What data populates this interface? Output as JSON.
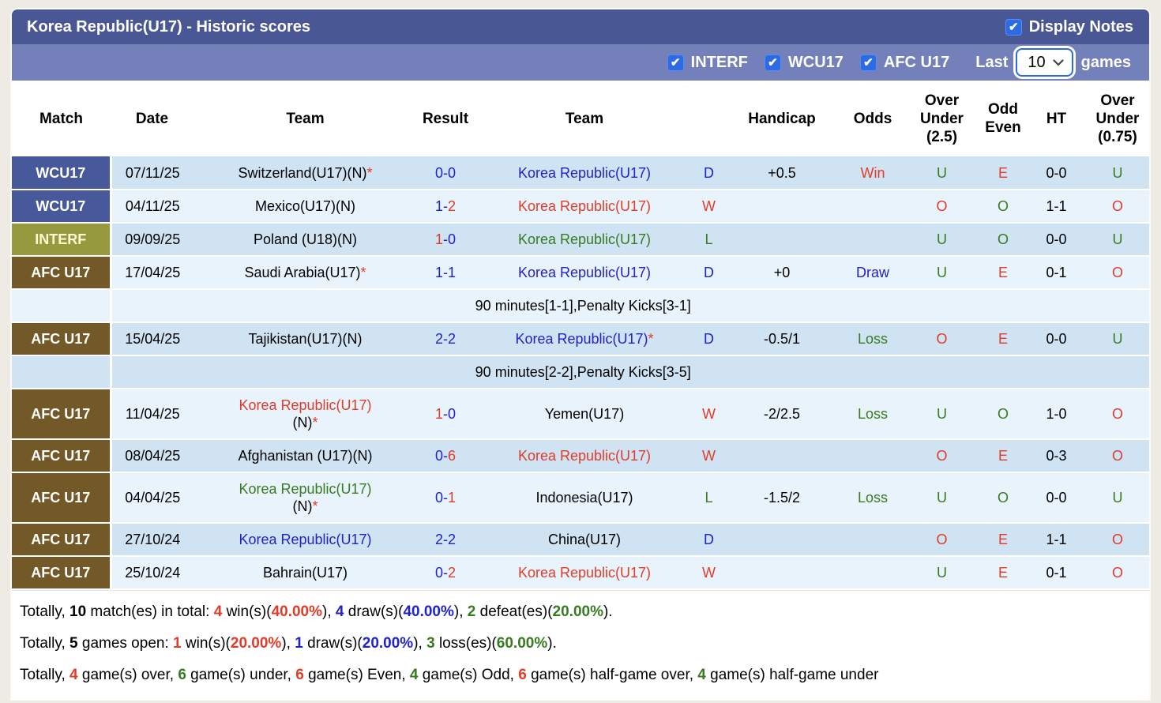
{
  "title_bar": {
    "title": "Korea Republic(U17) - Historic scores",
    "display_notes_label": "Display Notes",
    "display_notes_checked": true
  },
  "filter_bar": {
    "filters": [
      {
        "label": "INTERF",
        "checked": true
      },
      {
        "label": "WCU17",
        "checked": true
      },
      {
        "label": "AFC U17",
        "checked": true
      }
    ],
    "last_label": "Last",
    "games_label": "games",
    "selected_count": "10"
  },
  "colors": {
    "text": {
      "red": "#e23b28",
      "blue": "#2122cc",
      "green": "#377b21",
      "black": "#000000"
    },
    "badges": {
      "wcu17": "#47589b",
      "interf": "#97993f",
      "afcu17": "#735927"
    },
    "row_dark": "#cfe3f3",
    "row_light": "#e9f3fb",
    "title_bar": "#4a5795",
    "filter_bar": "#7480b9",
    "checkbox": "#2d6be4"
  },
  "table": {
    "headers": {
      "match": "Match",
      "date": "Date",
      "team1": "Team",
      "result": "Result",
      "team2": "Team",
      "wdl": "",
      "handicap": "Handicap",
      "odds": "Odds",
      "ou25": "Over\nUnder\n(2.5)",
      "oddeven": "Odd\nEven",
      "ht": "HT",
      "ou075": "Over\nUnder\n(0.75)"
    },
    "rows": [
      {
        "type": "match",
        "league": "WCU17",
        "lkey": "wcu17",
        "shade": "dark",
        "date": "07/11/25",
        "t1": {
          "name": "Switzerland(U17)(N)",
          "color": "black",
          "star": true
        },
        "res": {
          "a": "0",
          "ac": "blue",
          "b": "0",
          "bc": "blue"
        },
        "t2": {
          "name": "Korea Republic(U17)",
          "color": "blue"
        },
        "wdl": {
          "t": "D",
          "c": "blue"
        },
        "handicap": "+0.5",
        "odds": {
          "t": "Win",
          "c": "red"
        },
        "ou25": {
          "t": "U",
          "c": "green"
        },
        "oe": {
          "t": "E",
          "c": "red"
        },
        "ht": "0-0",
        "ou075": {
          "t": "U",
          "c": "green"
        }
      },
      {
        "type": "match",
        "league": "WCU17",
        "lkey": "wcu17",
        "shade": "light",
        "date": "04/11/25",
        "t1": {
          "name": "Mexico(U17)(N)",
          "color": "black"
        },
        "res": {
          "a": "1",
          "ac": "blue",
          "b": "2",
          "bc": "red"
        },
        "t2": {
          "name": "Korea Republic(U17)",
          "color": "red"
        },
        "wdl": {
          "t": "W",
          "c": "red"
        },
        "handicap": "",
        "odds": null,
        "ou25": {
          "t": "O",
          "c": "red"
        },
        "oe": {
          "t": "O",
          "c": "green"
        },
        "ht": "1-1",
        "ou075": {
          "t": "O",
          "c": "red"
        }
      },
      {
        "type": "match",
        "league": "INTERF",
        "lkey": "interf",
        "shade": "dark",
        "date": "09/09/25",
        "t1": {
          "name": "Poland (U18)(N)",
          "color": "black"
        },
        "res": {
          "a": "1",
          "ac": "red",
          "b": "0",
          "bc": "blue"
        },
        "t2": {
          "name": "Korea Republic(U17)",
          "color": "green"
        },
        "wdl": {
          "t": "L",
          "c": "green"
        },
        "handicap": "",
        "odds": null,
        "ou25": {
          "t": "U",
          "c": "green"
        },
        "oe": {
          "t": "O",
          "c": "green"
        },
        "ht": "0-0",
        "ou075": {
          "t": "U",
          "c": "green"
        }
      },
      {
        "type": "match",
        "league": "AFC U17",
        "lkey": "afcu17",
        "shade": "light",
        "date": "17/04/25",
        "t1": {
          "name": "Saudi Arabia(U17)",
          "color": "black",
          "star": true
        },
        "res": {
          "a": "1",
          "ac": "blue",
          "b": "1",
          "bc": "blue"
        },
        "t2": {
          "name": "Korea Republic(U17)",
          "color": "blue"
        },
        "wdl": {
          "t": "D",
          "c": "blue"
        },
        "handicap": "+0",
        "odds": {
          "t": "Draw",
          "c": "blue"
        },
        "ou25": {
          "t": "U",
          "c": "green"
        },
        "oe": {
          "t": "E",
          "c": "red"
        },
        "ht": "0-1",
        "ou075": {
          "t": "O",
          "c": "red"
        }
      },
      {
        "type": "note",
        "shade": "light",
        "text": "90 minutes[1-1],Penalty Kicks[3-1]"
      },
      {
        "type": "match",
        "league": "AFC U17",
        "lkey": "afcu17",
        "shade": "dark",
        "date": "15/04/25",
        "t1": {
          "name": "Tajikistan(U17)(N)",
          "color": "black"
        },
        "res": {
          "a": "2",
          "ac": "blue",
          "b": "2",
          "bc": "blue"
        },
        "t2": {
          "name": "Korea Republic(U17)",
          "color": "blue",
          "star": true
        },
        "wdl": {
          "t": "D",
          "c": "blue"
        },
        "handicap": "-0.5/1",
        "odds": {
          "t": "Loss",
          "c": "green"
        },
        "ou25": {
          "t": "O",
          "c": "red"
        },
        "oe": {
          "t": "E",
          "c": "red"
        },
        "ht": "0-0",
        "ou075": {
          "t": "U",
          "c": "green"
        }
      },
      {
        "type": "note",
        "shade": "dark",
        "text": "90 minutes[2-2],Penalty Kicks[3-5]"
      },
      {
        "type": "match",
        "league": "AFC U17",
        "lkey": "afcu17",
        "shade": "light",
        "date": "11/04/25",
        "t1": {
          "name": "Korea Republic(U17)",
          "line2": "(N)",
          "color": "red",
          "star": true
        },
        "res": {
          "a": "1",
          "ac": "red",
          "b": "0",
          "bc": "blue"
        },
        "t2": {
          "name": "Yemen(U17)",
          "color": "black"
        },
        "wdl": {
          "t": "W",
          "c": "red"
        },
        "handicap": "-2/2.5",
        "odds": {
          "t": "Loss",
          "c": "green"
        },
        "ou25": {
          "t": "U",
          "c": "green"
        },
        "oe": {
          "t": "O",
          "c": "green"
        },
        "ht": "1-0",
        "ou075": {
          "t": "O",
          "c": "red"
        }
      },
      {
        "type": "match",
        "league": "AFC U17",
        "lkey": "afcu17",
        "shade": "dark",
        "date": "08/04/25",
        "t1": {
          "name": "Afghanistan (U17)(N)",
          "color": "black"
        },
        "res": {
          "a": "0",
          "ac": "blue",
          "b": "6",
          "bc": "red"
        },
        "t2": {
          "name": "Korea Republic(U17)",
          "color": "red"
        },
        "wdl": {
          "t": "W",
          "c": "red"
        },
        "handicap": "",
        "odds": null,
        "ou25": {
          "t": "O",
          "c": "red"
        },
        "oe": {
          "t": "E",
          "c": "red"
        },
        "ht": "0-3",
        "ou075": {
          "t": "O",
          "c": "red"
        }
      },
      {
        "type": "match",
        "league": "AFC U17",
        "lkey": "afcu17",
        "shade": "light",
        "date": "04/04/25",
        "t1": {
          "name": "Korea Republic(U17)",
          "line2": "(N)",
          "color": "green",
          "star": true
        },
        "res": {
          "a": "0",
          "ac": "blue",
          "b": "1",
          "bc": "red"
        },
        "t2": {
          "name": "Indonesia(U17)",
          "color": "black"
        },
        "wdl": {
          "t": "L",
          "c": "green"
        },
        "handicap": "-1.5/2",
        "odds": {
          "t": "Loss",
          "c": "green"
        },
        "ou25": {
          "t": "U",
          "c": "green"
        },
        "oe": {
          "t": "O",
          "c": "green"
        },
        "ht": "0-0",
        "ou075": {
          "t": "U",
          "c": "green"
        }
      },
      {
        "type": "match",
        "league": "AFC U17",
        "lkey": "afcu17",
        "shade": "dark",
        "date": "27/10/24",
        "t1": {
          "name": "Korea Republic(U17)",
          "color": "blue"
        },
        "res": {
          "a": "2",
          "ac": "blue",
          "b": "2",
          "bc": "blue"
        },
        "t2": {
          "name": "China(U17)",
          "color": "black"
        },
        "wdl": {
          "t": "D",
          "c": "blue"
        },
        "handicap": "",
        "odds": null,
        "ou25": {
          "t": "O",
          "c": "red"
        },
        "oe": {
          "t": "E",
          "c": "red"
        },
        "ht": "1-1",
        "ou075": {
          "t": "O",
          "c": "red"
        }
      },
      {
        "type": "match",
        "league": "AFC U17",
        "lkey": "afcu17",
        "shade": "light",
        "date": "25/10/24",
        "t1": {
          "name": "Bahrain(U17)",
          "color": "black"
        },
        "res": {
          "a": "0",
          "ac": "blue",
          "b": "2",
          "bc": "red"
        },
        "t2": {
          "name": "Korea Republic(U17)",
          "color": "red"
        },
        "wdl": {
          "t": "W",
          "c": "red"
        },
        "handicap": "",
        "odds": null,
        "ou25": {
          "t": "U",
          "c": "green"
        },
        "oe": {
          "t": "E",
          "c": "red"
        },
        "ht": "0-1",
        "ou075": {
          "t": "O",
          "c": "red"
        }
      }
    ]
  },
  "footer": {
    "lines": [
      [
        {
          "t": "Totally, "
        },
        {
          "t": "10",
          "b": 1
        },
        {
          "t": " match(es) in total: "
        },
        {
          "t": "4",
          "b": 1,
          "c": "red"
        },
        {
          "t": " win(s)("
        },
        {
          "t": "40.00%",
          "b": 1,
          "c": "red"
        },
        {
          "t": "), "
        },
        {
          "t": "4",
          "b": 1,
          "c": "blue"
        },
        {
          "t": " draw(s)("
        },
        {
          "t": "40.00%",
          "b": 1,
          "c": "blue"
        },
        {
          "t": "), "
        },
        {
          "t": "2",
          "b": 1,
          "c": "green"
        },
        {
          "t": " defeat(es)("
        },
        {
          "t": "20.00%",
          "b": 1,
          "c": "green"
        },
        {
          "t": ")."
        }
      ],
      [
        {
          "t": "Totally, "
        },
        {
          "t": "5",
          "b": 1
        },
        {
          "t": " games open: "
        },
        {
          "t": "1",
          "b": 1,
          "c": "red"
        },
        {
          "t": " win(s)("
        },
        {
          "t": "20.00%",
          "b": 1,
          "c": "red"
        },
        {
          "t": "), "
        },
        {
          "t": "1",
          "b": 1,
          "c": "blue"
        },
        {
          "t": " draw(s)("
        },
        {
          "t": "20.00%",
          "b": 1,
          "c": "blue"
        },
        {
          "t": "), "
        },
        {
          "t": "3",
          "b": 1,
          "c": "green"
        },
        {
          "t": " loss(es)("
        },
        {
          "t": "60.00%",
          "b": 1,
          "c": "green"
        },
        {
          "t": ")."
        }
      ],
      [
        {
          "t": "Totally, "
        },
        {
          "t": "4",
          "b": 1,
          "c": "red"
        },
        {
          "t": " game(s) over, "
        },
        {
          "t": "6",
          "b": 1,
          "c": "green"
        },
        {
          "t": " game(s) under, "
        },
        {
          "t": "6",
          "b": 1,
          "c": "red"
        },
        {
          "t": " game(s) Even, "
        },
        {
          "t": "4",
          "b": 1,
          "c": "green"
        },
        {
          "t": " game(s) Odd, "
        },
        {
          "t": "6",
          "b": 1,
          "c": "red"
        },
        {
          "t": " game(s) half-game over, "
        },
        {
          "t": "4",
          "b": 1,
          "c": "green"
        },
        {
          "t": " game(s) half-game under"
        }
      ]
    ]
  }
}
